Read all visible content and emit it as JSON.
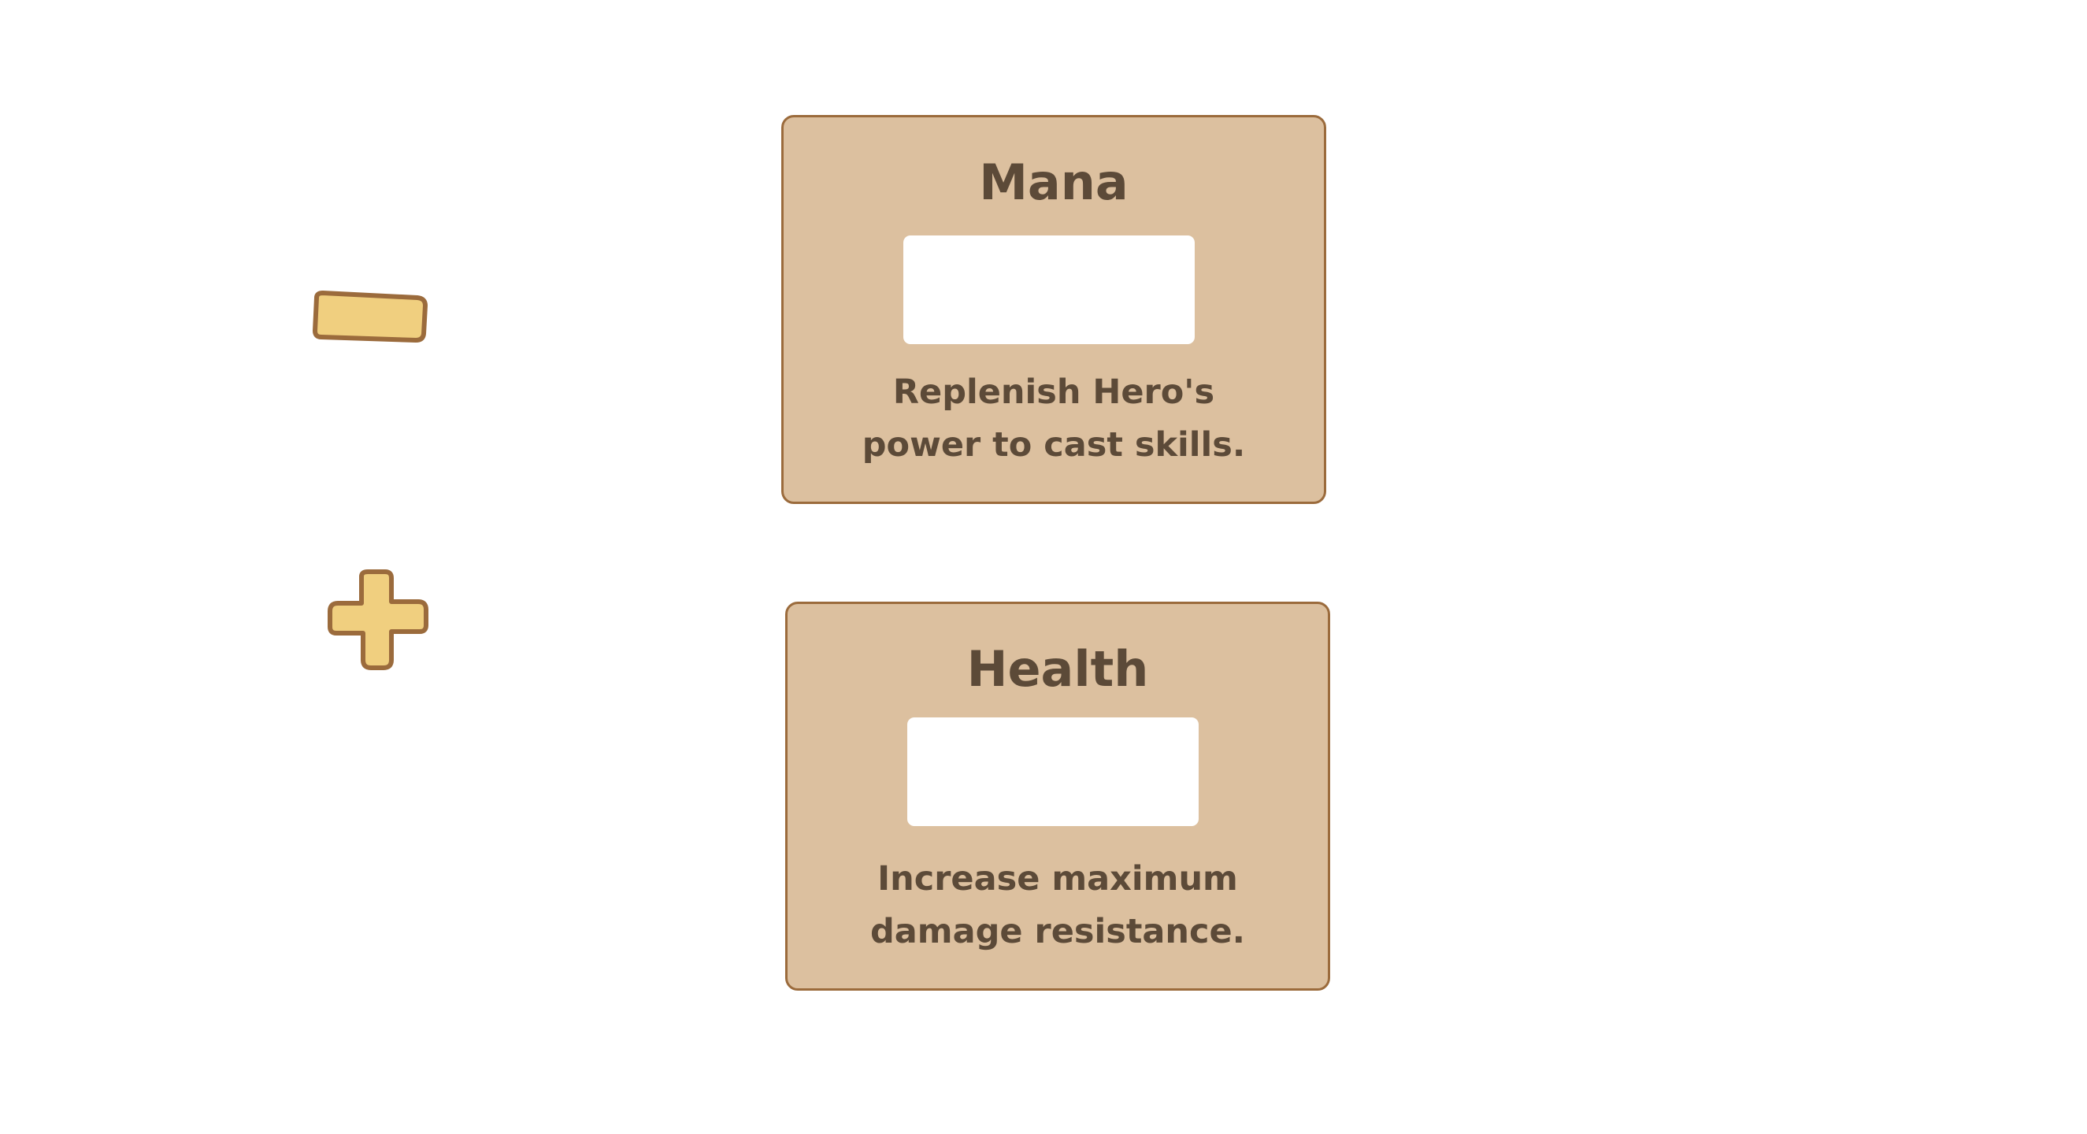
{
  "controls": {
    "decrease_icon": "minus-icon",
    "increase_icon": "plus-icon",
    "icon_fill": "#f0cf7f",
    "icon_stroke": "#9b6b3c"
  },
  "cards": [
    {
      "title": "Mana",
      "description_lines": [
        "Replenish Hero's",
        "power to cast skills."
      ]
    },
    {
      "title": "Health",
      "description_lines": [
        "Increase maximum",
        "damage resistance."
      ]
    }
  ],
  "colors": {
    "card_background": "#dcc09f",
    "card_border": "#9b6b3c",
    "text": "#5c4a38",
    "slot": "#ffffff"
  }
}
